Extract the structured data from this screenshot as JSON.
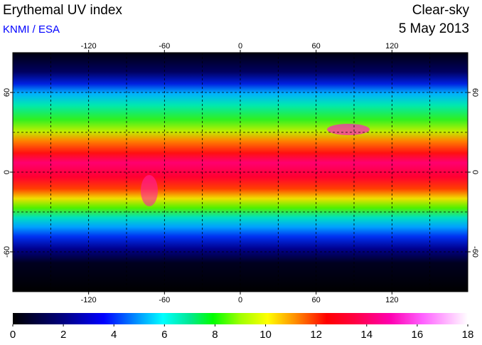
{
  "header": {
    "title": "Erythemal UV index",
    "credit": "KNMI / ESA",
    "mode": "Clear-sky",
    "date": "5 May 2013"
  },
  "map": {
    "lon_range": [
      -180,
      180
    ],
    "lat_range": [
      -90,
      90
    ],
    "lon_ticks": [
      -120,
      -60,
      0,
      60,
      120
    ],
    "lat_ticks": [
      60,
      0,
      -60
    ]
  },
  "colorbar": {
    "range": [
      0,
      18
    ],
    "ticks": [
      0,
      2,
      4,
      6,
      8,
      10,
      12,
      14,
      16,
      18
    ]
  }
}
